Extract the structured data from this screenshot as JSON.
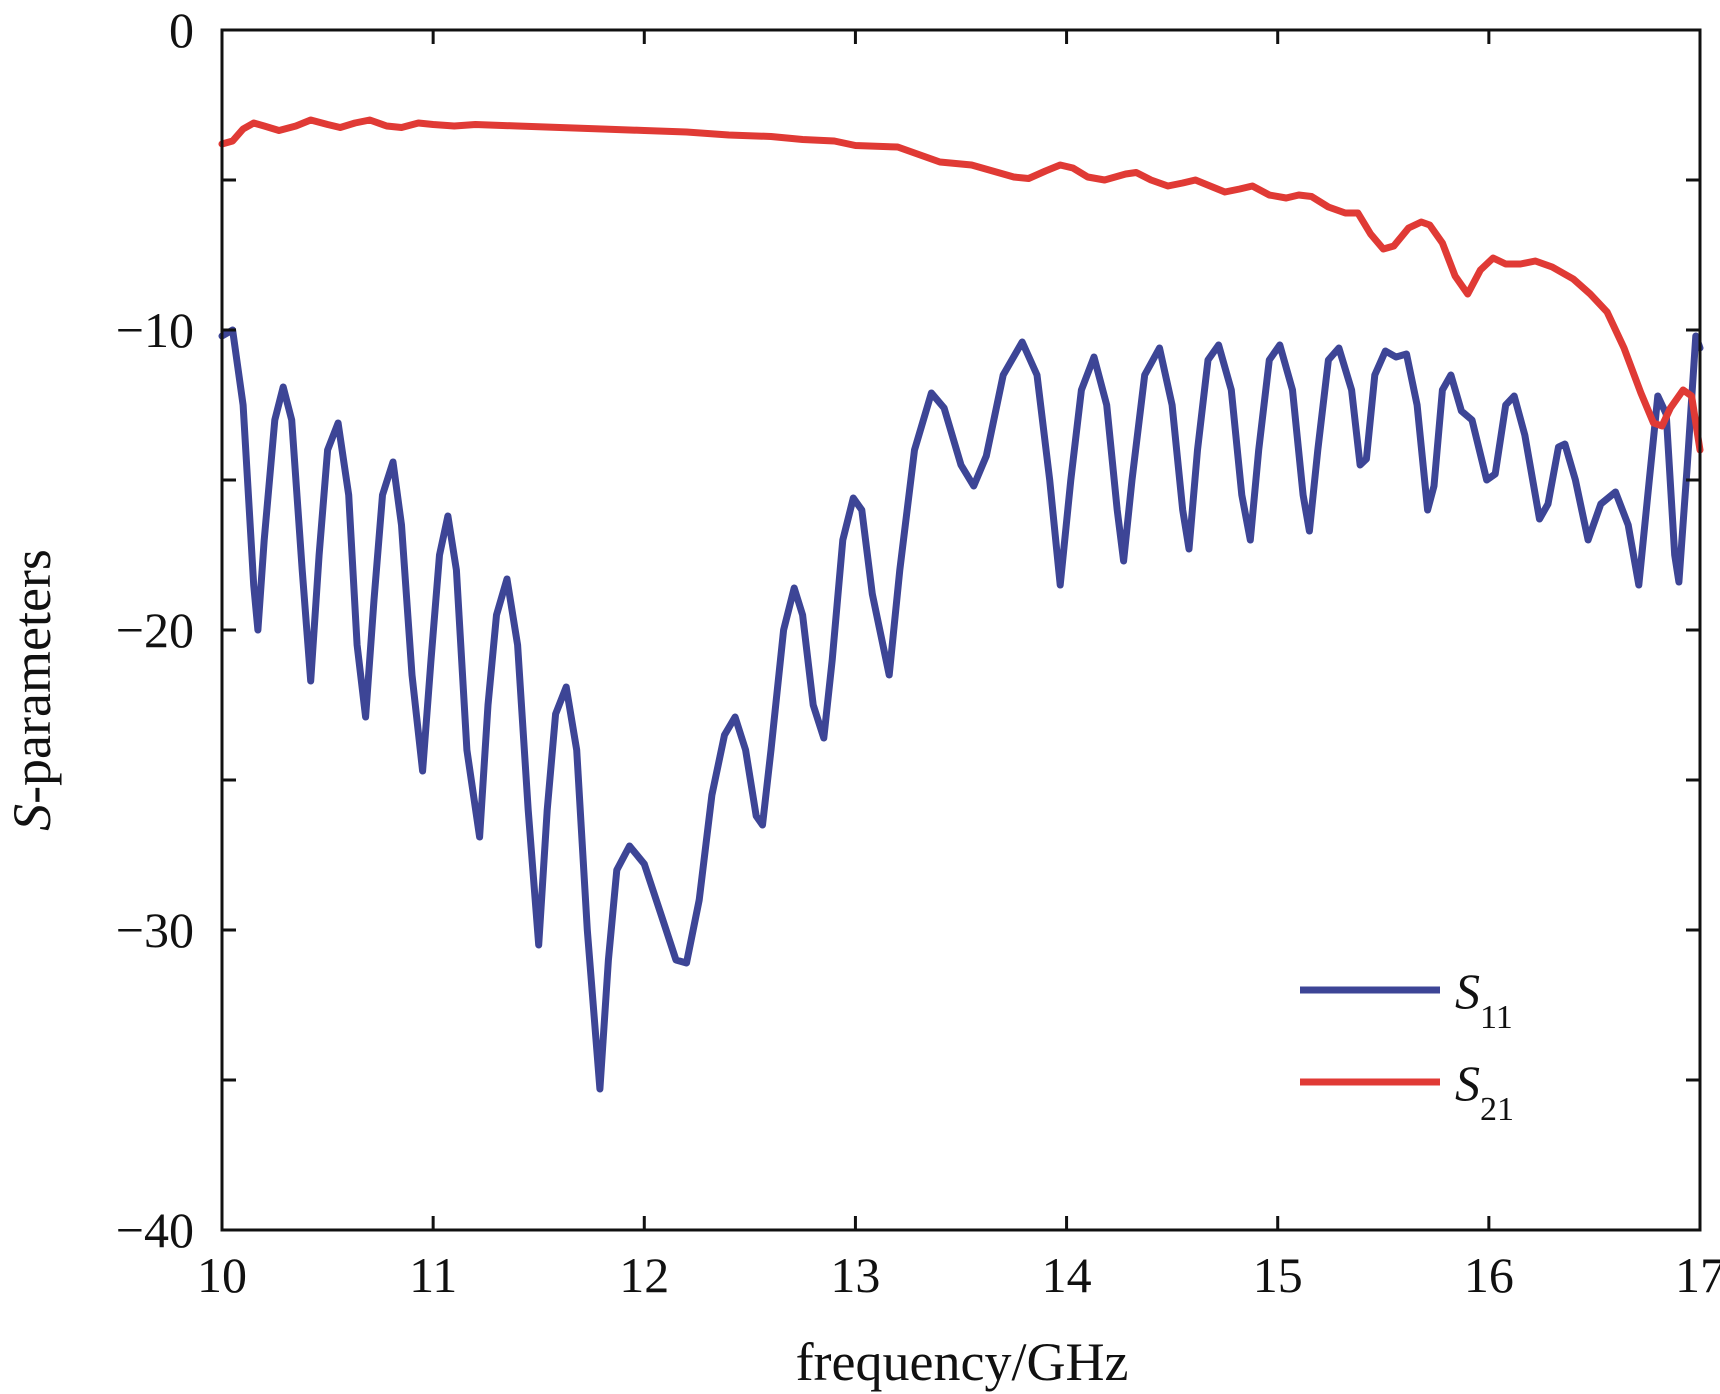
{
  "chart_data": {
    "type": "line",
    "xlabel": "frequency/GHz",
    "ylabel_prefix": "S",
    "ylabel_suffix": "-parameters",
    "xlim": [
      10,
      17
    ],
    "ylim": [
      -40,
      0
    ],
    "x_ticks": [
      10,
      11,
      12,
      13,
      14,
      15,
      16,
      17
    ],
    "y_ticks": [
      0,
      -10,
      -20,
      -30,
      -40
    ],
    "x_tick_labels": [
      "10",
      "11",
      "12",
      "13",
      "14",
      "15",
      "16",
      "17"
    ],
    "y_tick_labels": [
      "0",
      "−10",
      "−20",
      "−30",
      "−40"
    ],
    "grid": false,
    "legend_position": "bottom-right",
    "series": [
      {
        "name": "S11",
        "name_main": "S",
        "name_sub": "11",
        "color": "#3d4596",
        "points": [
          [
            10.0,
            -10.2
          ],
          [
            10.05,
            -10.0
          ],
          [
            10.1,
            -12.5
          ],
          [
            10.15,
            -18.5
          ],
          [
            10.17,
            -20.0
          ],
          [
            10.2,
            -17.0
          ],
          [
            10.25,
            -13.0
          ],
          [
            10.29,
            -11.9
          ],
          [
            10.33,
            -13.0
          ],
          [
            10.38,
            -18.0
          ],
          [
            10.42,
            -21.7
          ],
          [
            10.46,
            -17.5
          ],
          [
            10.5,
            -14.0
          ],
          [
            10.55,
            -13.1
          ],
          [
            10.6,
            -15.5
          ],
          [
            10.64,
            -20.5
          ],
          [
            10.68,
            -22.9
          ],
          [
            10.72,
            -19.0
          ],
          [
            10.76,
            -15.5
          ],
          [
            10.81,
            -14.4
          ],
          [
            10.85,
            -16.5
          ],
          [
            10.9,
            -21.5
          ],
          [
            10.95,
            -24.7
          ],
          [
            10.99,
            -21.0
          ],
          [
            11.03,
            -17.5
          ],
          [
            11.07,
            -16.2
          ],
          [
            11.11,
            -18.0
          ],
          [
            11.16,
            -24.0
          ],
          [
            11.22,
            -26.9
          ],
          [
            11.26,
            -22.5
          ],
          [
            11.3,
            -19.5
          ],
          [
            11.35,
            -18.3
          ],
          [
            11.4,
            -20.5
          ],
          [
            11.45,
            -26.0
          ],
          [
            11.5,
            -30.5
          ],
          [
            11.54,
            -26.0
          ],
          [
            11.58,
            -22.8
          ],
          [
            11.63,
            -21.9
          ],
          [
            11.68,
            -24.0
          ],
          [
            11.73,
            -30.0
          ],
          [
            11.79,
            -35.3
          ],
          [
            11.83,
            -31.0
          ],
          [
            11.87,
            -28.0
          ],
          [
            11.93,
            -27.2
          ],
          [
            12.0,
            -27.8
          ],
          [
            12.08,
            -29.5
          ],
          [
            12.15,
            -31.0
          ],
          [
            12.2,
            -31.1
          ],
          [
            12.26,
            -29.0
          ],
          [
            12.32,
            -25.5
          ],
          [
            12.38,
            -23.5
          ],
          [
            12.43,
            -22.9
          ],
          [
            12.48,
            -24.0
          ],
          [
            12.53,
            -26.2
          ],
          [
            12.56,
            -26.5
          ],
          [
            12.6,
            -24.0
          ],
          [
            12.66,
            -20.0
          ],
          [
            12.71,
            -18.6
          ],
          [
            12.75,
            -19.5
          ],
          [
            12.8,
            -22.5
          ],
          [
            12.85,
            -23.6
          ],
          [
            12.89,
            -21.0
          ],
          [
            12.94,
            -17.0
          ],
          [
            12.99,
            -15.6
          ],
          [
            13.03,
            -16.0
          ],
          [
            13.08,
            -18.8
          ],
          [
            13.16,
            -21.5
          ],
          [
            13.21,
            -18.0
          ],
          [
            13.28,
            -14.0
          ],
          [
            13.36,
            -12.1
          ],
          [
            13.42,
            -12.6
          ],
          [
            13.5,
            -14.5
          ],
          [
            13.56,
            -15.2
          ],
          [
            13.62,
            -14.2
          ],
          [
            13.7,
            -11.5
          ],
          [
            13.79,
            -10.4
          ],
          [
            13.86,
            -11.5
          ],
          [
            13.92,
            -15.0
          ],
          [
            13.97,
            -18.5
          ],
          [
            14.02,
            -15.0
          ],
          [
            14.07,
            -12.0
          ],
          [
            14.13,
            -10.9
          ],
          [
            14.19,
            -12.5
          ],
          [
            14.24,
            -16.0
          ],
          [
            14.27,
            -17.7
          ],
          [
            14.31,
            -15.0
          ],
          [
            14.37,
            -11.5
          ],
          [
            14.44,
            -10.6
          ],
          [
            14.5,
            -12.5
          ],
          [
            14.55,
            -16.0
          ],
          [
            14.58,
            -17.3
          ],
          [
            14.62,
            -14.0
          ],
          [
            14.67,
            -11.0
          ],
          [
            14.72,
            -10.5
          ],
          [
            14.78,
            -12.0
          ],
          [
            14.83,
            -15.5
          ],
          [
            14.87,
            -17.0
          ],
          [
            14.91,
            -14.0
          ],
          [
            14.96,
            -11.0
          ],
          [
            15.01,
            -10.5
          ],
          [
            15.07,
            -12.0
          ],
          [
            15.12,
            -15.5
          ],
          [
            15.15,
            -16.7
          ],
          [
            15.19,
            -14.0
          ],
          [
            15.24,
            -11.0
          ],
          [
            15.29,
            -10.6
          ],
          [
            15.35,
            -12.0
          ],
          [
            15.39,
            -14.5
          ],
          [
            15.42,
            -14.3
          ],
          [
            15.46,
            -11.5
          ],
          [
            15.51,
            -10.7
          ],
          [
            15.56,
            -10.9
          ],
          [
            15.61,
            -10.8
          ],
          [
            15.66,
            -12.5
          ],
          [
            15.71,
            -16.0
          ],
          [
            15.74,
            -15.2
          ],
          [
            15.78,
            -12.0
          ],
          [
            15.82,
            -11.5
          ],
          [
            15.87,
            -12.7
          ],
          [
            15.92,
            -13.0
          ],
          [
            15.99,
            -15.0
          ],
          [
            16.03,
            -14.8
          ],
          [
            16.08,
            -12.5
          ],
          [
            16.12,
            -12.2
          ],
          [
            16.17,
            -13.5
          ],
          [
            16.24,
            -16.3
          ],
          [
            16.28,
            -15.8
          ],
          [
            16.33,
            -13.9
          ],
          [
            16.36,
            -13.8
          ],
          [
            16.41,
            -15.0
          ],
          [
            16.47,
            -17.0
          ],
          [
            16.53,
            -15.8
          ],
          [
            16.6,
            -15.4
          ],
          [
            16.66,
            -16.5
          ],
          [
            16.71,
            -18.5
          ],
          [
            16.76,
            -15.0
          ],
          [
            16.8,
            -12.2
          ],
          [
            16.84,
            -12.8
          ],
          [
            16.88,
            -17.5
          ],
          [
            16.9,
            -18.4
          ],
          [
            16.94,
            -14.5
          ],
          [
            16.98,
            -10.2
          ],
          [
            17.0,
            -10.6
          ]
        ]
      },
      {
        "name": "S21",
        "name_main": "S",
        "name_sub": "21",
        "color": "#e03a35",
        "points": [
          [
            10.0,
            -3.8
          ],
          [
            10.05,
            -3.7
          ],
          [
            10.1,
            -3.3
          ],
          [
            10.15,
            -3.1
          ],
          [
            10.2,
            -3.2
          ],
          [
            10.27,
            -3.35
          ],
          [
            10.35,
            -3.2
          ],
          [
            10.42,
            -3.0
          ],
          [
            10.5,
            -3.15
          ],
          [
            10.56,
            -3.25
          ],
          [
            10.63,
            -3.1
          ],
          [
            10.7,
            -3.0
          ],
          [
            10.78,
            -3.2
          ],
          [
            10.85,
            -3.25
          ],
          [
            10.93,
            -3.1
          ],
          [
            11.0,
            -3.15
          ],
          [
            11.1,
            -3.2
          ],
          [
            11.2,
            -3.15
          ],
          [
            11.4,
            -3.2
          ],
          [
            11.6,
            -3.25
          ],
          [
            11.8,
            -3.3
          ],
          [
            12.0,
            -3.35
          ],
          [
            12.2,
            -3.4
          ],
          [
            12.4,
            -3.5
          ],
          [
            12.6,
            -3.55
          ],
          [
            12.75,
            -3.65
          ],
          [
            12.9,
            -3.7
          ],
          [
            13.0,
            -3.85
          ],
          [
            13.2,
            -3.9
          ],
          [
            13.3,
            -4.15
          ],
          [
            13.4,
            -4.4
          ],
          [
            13.55,
            -4.5
          ],
          [
            13.65,
            -4.7
          ],
          [
            13.75,
            -4.9
          ],
          [
            13.82,
            -4.95
          ],
          [
            13.9,
            -4.7
          ],
          [
            13.97,
            -4.5
          ],
          [
            14.03,
            -4.6
          ],
          [
            14.1,
            -4.9
          ],
          [
            14.18,
            -5.0
          ],
          [
            14.28,
            -4.8
          ],
          [
            14.33,
            -4.75
          ],
          [
            14.4,
            -5.0
          ],
          [
            14.48,
            -5.2
          ],
          [
            14.55,
            -5.1
          ],
          [
            14.61,
            -5.0
          ],
          [
            14.68,
            -5.2
          ],
          [
            14.75,
            -5.4
          ],
          [
            14.82,
            -5.3
          ],
          [
            14.88,
            -5.2
          ],
          [
            14.96,
            -5.5
          ],
          [
            15.04,
            -5.6
          ],
          [
            15.1,
            -5.5
          ],
          [
            15.16,
            -5.55
          ],
          [
            15.24,
            -5.9
          ],
          [
            15.32,
            -6.1
          ],
          [
            15.38,
            -6.1
          ],
          [
            15.44,
            -6.8
          ],
          [
            15.5,
            -7.3
          ],
          [
            15.55,
            -7.2
          ],
          [
            15.62,
            -6.6
          ],
          [
            15.68,
            -6.4
          ],
          [
            15.72,
            -6.5
          ],
          [
            15.78,
            -7.1
          ],
          [
            15.84,
            -8.2
          ],
          [
            15.9,
            -8.8
          ],
          [
            15.96,
            -8.0
          ],
          [
            16.02,
            -7.6
          ],
          [
            16.08,
            -7.8
          ],
          [
            16.15,
            -7.8
          ],
          [
            16.22,
            -7.7
          ],
          [
            16.3,
            -7.9
          ],
          [
            16.4,
            -8.3
          ],
          [
            16.48,
            -8.8
          ],
          [
            16.56,
            -9.4
          ],
          [
            16.64,
            -10.6
          ],
          [
            16.72,
            -12.1
          ],
          [
            16.78,
            -13.1
          ],
          [
            16.82,
            -13.2
          ],
          [
            16.86,
            -12.6
          ],
          [
            16.92,
            -12.0
          ],
          [
            16.96,
            -12.2
          ],
          [
            17.0,
            -14.0
          ]
        ]
      }
    ]
  }
}
